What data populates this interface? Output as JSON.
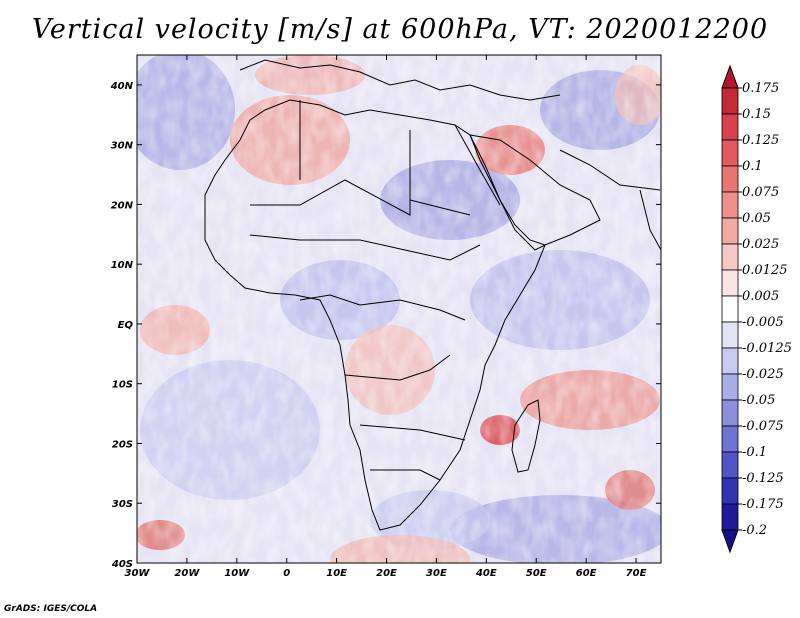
{
  "title": "Vertical velocity [m/s] at 600hPa, VT: 2020012200",
  "footer": "GrADS: IGES/COLA",
  "map": {
    "variable": "Vertical velocity",
    "units": "m/s",
    "level": "600hPa",
    "valid_time": "2020012200",
    "lon_range": [
      -30,
      75
    ],
    "lat_range": [
      -40,
      45
    ],
    "lat_labels": [
      "40N",
      "30N",
      "20N",
      "10N",
      "EQ",
      "10S",
      "20S",
      "30S",
      "40S"
    ],
    "lat_values": [
      40,
      30,
      20,
      10,
      0,
      -10,
      -20,
      -30,
      -40
    ],
    "lon_labels": [
      "30W",
      "20W",
      "10W",
      "0",
      "10E",
      "20E",
      "30E",
      "40E",
      "50E",
      "60E",
      "70E"
    ],
    "lon_values": [
      -30,
      -20,
      -10,
      0,
      10,
      20,
      30,
      40,
      50,
      60,
      70
    ]
  },
  "colorbar": {
    "labels": [
      "0.175",
      "0.15",
      "0.125",
      "0.1",
      "0.075",
      "0.05",
      "0.025",
      "0.0125",
      "0.005",
      "-0.005",
      "-0.0125",
      "-0.025",
      "-0.05",
      "-0.075",
      "-0.1",
      "-0.125",
      "-0.175",
      "-0.2"
    ],
    "colors": [
      "#b2182b",
      "#c42a34",
      "#d5434b",
      "#e05a5e",
      "#e87572",
      "#ee8f8a",
      "#f3aaa4",
      "#f7c8c3",
      "#fbe4e1",
      "#ffffff",
      "#e2e4f6",
      "#c8caef",
      "#aaaee6",
      "#8c90dc",
      "#6e72d2",
      "#5054c6",
      "#3234b4",
      "#1e1a9a",
      "#12108a"
    ]
  }
}
